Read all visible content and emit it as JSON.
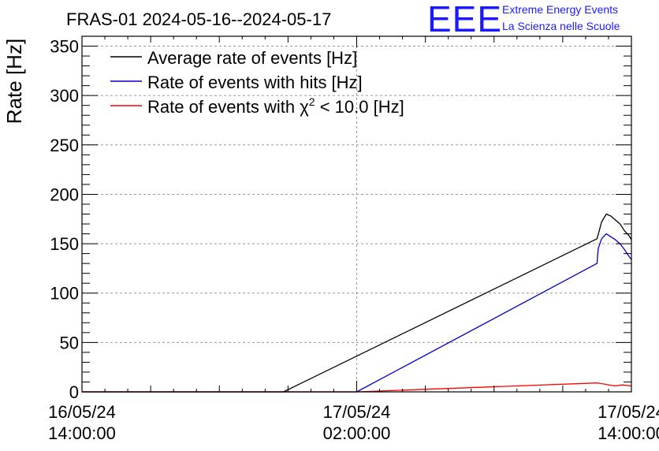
{
  "chart_data": {
    "type": "line",
    "title": "FRAS-01 2024-05-16--2024-05-17",
    "ylabel": "Rate [Hz]",
    "xlabel": "",
    "ylim": [
      0,
      360
    ],
    "xlim_hours": [
      0,
      24
    ],
    "grid": true,
    "legend_position": "top-left",
    "y_ticks": [
      0,
      50,
      100,
      150,
      200,
      250,
      300,
      350
    ],
    "x_ticks": [
      {
        "hour": 0,
        "date": "16/05/24",
        "time": "14:00:00"
      },
      {
        "hour": 12,
        "date": "17/05/24",
        "time": "02:00:00"
      },
      {
        "hour": 24,
        "date": "17/05/24",
        "time": "14:00:00"
      }
    ],
    "series": [
      {
        "name": "Average rate of events [Hz]",
        "color": "#000000",
        "points": [
          [
            0,
            0
          ],
          [
            8.8,
            0
          ],
          [
            22.5,
            155
          ],
          [
            22.7,
            172
          ],
          [
            22.9,
            180
          ],
          [
            23.1,
            178
          ],
          [
            23.3,
            174
          ],
          [
            23.5,
            170
          ],
          [
            23.7,
            163
          ],
          [
            23.9,
            158
          ],
          [
            24,
            154
          ]
        ]
      },
      {
        "name": "Rate of events with hits [Hz]",
        "color": "#0000cc",
        "points": [
          [
            0,
            0
          ],
          [
            12,
            0
          ],
          [
            22.5,
            130
          ],
          [
            22.55,
            145
          ],
          [
            22.7,
            155
          ],
          [
            22.9,
            160
          ],
          [
            23.1,
            157
          ],
          [
            23.3,
            154
          ],
          [
            23.5,
            150
          ],
          [
            23.7,
            144
          ],
          [
            23.9,
            137
          ],
          [
            24,
            134
          ]
        ]
      },
      {
        "name": "Rate of events with χ² < 10.0 [Hz]",
        "legend_main": "Rate of events with ",
        "legend_chi": "χ",
        "legend_sup": "2",
        "legend_tail": " < 10.0 [Hz]",
        "color": "#ff0000",
        "points": [
          [
            0,
            0
          ],
          [
            12,
            0
          ],
          [
            22.5,
            9
          ],
          [
            22.8,
            8
          ],
          [
            23.0,
            7
          ],
          [
            23.3,
            6
          ],
          [
            23.6,
            7
          ],
          [
            24,
            6
          ]
        ]
      }
    ]
  },
  "logo": {
    "text": "EEE",
    "line1": "Extreme Energy Events",
    "line2": "La Scienza nelle Scuole"
  }
}
